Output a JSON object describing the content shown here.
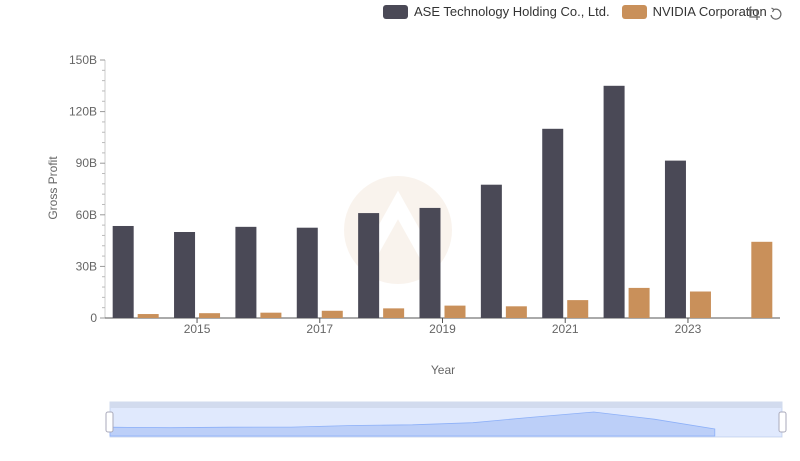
{
  "legend": {
    "items": [
      {
        "label": "ASE Technology Holding Co., Ltd.",
        "color": "#4a4956"
      },
      {
        "label": "NVIDIA Corporation",
        "color": "#c9905a"
      }
    ]
  },
  "toolbox": {
    "zoom_icon": "zoom-icon",
    "restore_icon": "restore-icon"
  },
  "chart_data": {
    "type": "bar",
    "title": "",
    "xlabel": "Year",
    "ylabel": "Gross Profit",
    "categories": [
      "2014",
      "2015",
      "2016",
      "2017",
      "2018",
      "2019",
      "2020",
      "2021",
      "2022",
      "2023",
      "2024"
    ],
    "x_tick_labels": [
      "2015",
      "2017",
      "2019",
      "2021",
      "2023"
    ],
    "y_tick_labels": [
      "0",
      "30B",
      "60B",
      "90B",
      "120B",
      "150B"
    ],
    "ylim": [
      0,
      150
    ],
    "y_unit": "B",
    "series": [
      {
        "name": "ASE Technology Holding Co., Ltd.",
        "color": "#4a4956",
        "values": [
          53.5,
          50,
          53,
          52.5,
          61,
          64,
          77.5,
          110,
          135,
          91.5,
          null
        ]
      },
      {
        "name": "NVIDIA Corporation",
        "color": "#c9905a",
        "values": [
          2.3,
          2.8,
          3.1,
          4.2,
          5.6,
          7.2,
          6.8,
          10.4,
          17.5,
          15.4,
          44.3
        ]
      }
    ],
    "legend_position": "top-right",
    "grid": false,
    "data_zoom": true
  }
}
